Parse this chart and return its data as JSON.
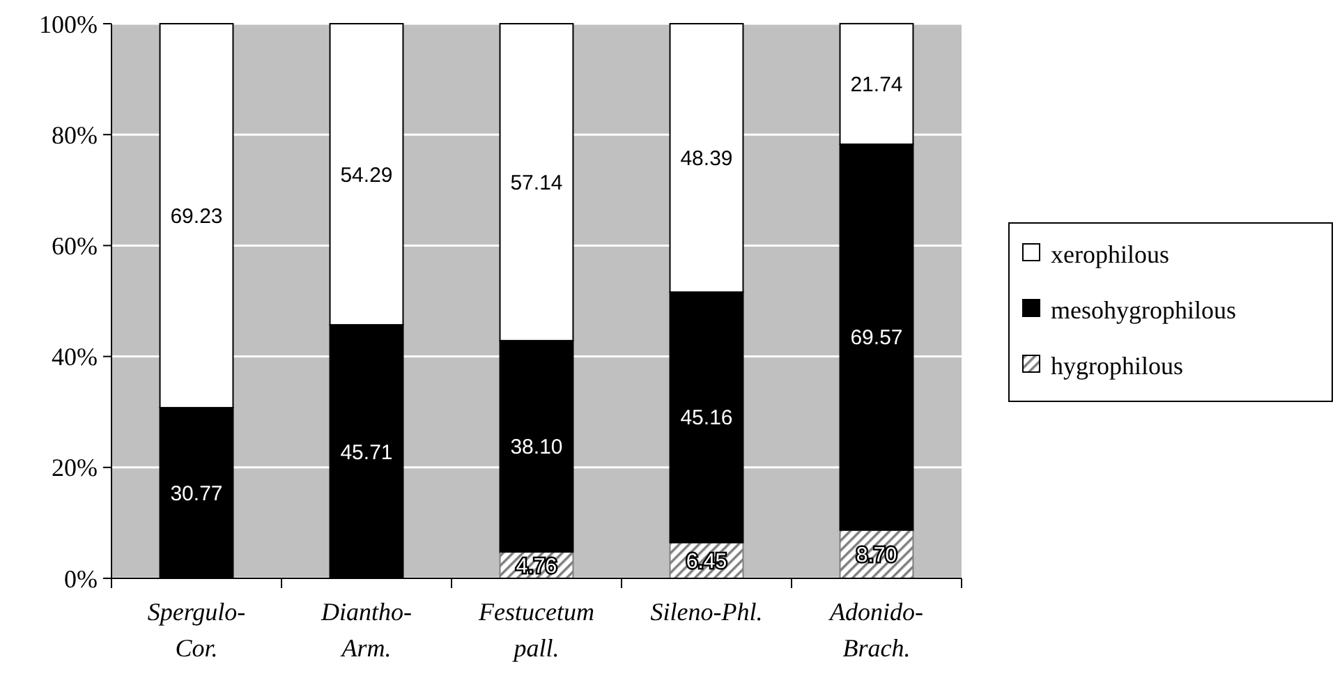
{
  "chart_data": {
    "type": "bar",
    "stacked": true,
    "categories": [
      "Spergulo-\nCor.",
      "Diantho-\nArm.",
      "Festucetum\npall.",
      "Sileno-Phl.",
      "Adonido-\nBrach."
    ],
    "series": [
      {
        "name": "hygrophilous",
        "color": "#808080",
        "values": [
          0,
          0,
          4.76,
          6.45,
          8.7
        ],
        "value_labels": [
          null,
          null,
          "4.76",
          "6.45",
          "8.70"
        ]
      },
      {
        "name": "mesohygrophilous",
        "color": "#000000",
        "values": [
          30.77,
          45.71,
          38.1,
          45.16,
          69.57
        ],
        "value_labels": [
          "30.77",
          "45.71",
          "38.10",
          "45.16",
          "69.57"
        ]
      },
      {
        "name": "xerophilous",
        "color": "#ffffff",
        "values": [
          69.23,
          54.29,
          57.14,
          48.39,
          21.74
        ],
        "value_labels": [
          "69.23",
          "54.29",
          "57.14",
          "48.39",
          "21.74"
        ]
      }
    ],
    "ylim": [
      0,
      100
    ],
    "yticks": [
      {
        "value": 0,
        "label": "0%"
      },
      {
        "value": 20,
        "label": "20%"
      },
      {
        "value": 40,
        "label": "40%"
      },
      {
        "value": 60,
        "label": "60%"
      },
      {
        "value": 80,
        "label": "80%"
      },
      {
        "value": 100,
        "label": "100%"
      }
    ],
    "grid": "y",
    "legend": "right"
  }
}
